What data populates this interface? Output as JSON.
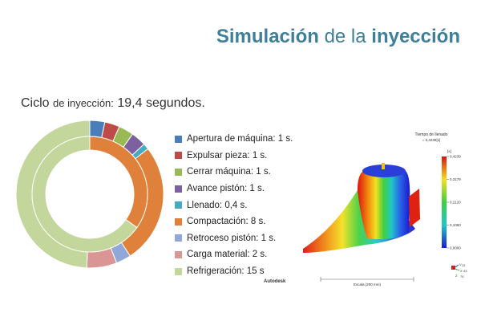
{
  "title": {
    "part1": "Simulación",
    "part2": "de la",
    "part3": "inyección"
  },
  "cycle": {
    "word": "Ciclo",
    "mid": "de inyección:",
    "value": "19,4 segundos."
  },
  "chart_data": {
    "type": "pie",
    "categories": [
      "Apertura de máquina",
      "Expulsar pieza",
      "Cerrar máquina",
      "Avance pistón",
      "Llenado",
      "Compactación",
      "Retroceso pistón",
      "Carga material",
      "Refrigeración"
    ],
    "values": [
      1,
      1,
      1,
      1,
      0.4,
      8,
      1,
      2,
      15
    ],
    "colors": [
      "#4a7ebb",
      "#be4b48",
      "#98b954",
      "#7d60a0",
      "#46aac5",
      "#e0813b",
      "#8fa8d8",
      "#d99694",
      "#c3d69b"
    ],
    "rings": [
      {
        "indices": [
          0,
          1,
          2,
          3,
          4,
          5,
          6,
          7,
          8
        ]
      },
      {
        "indices": [
          5,
          8
        ]
      }
    ],
    "legend": [
      "Apertura de máquina: 1 s.",
      "Expulsar pieza: 1 s.",
      "Cerrar máquina: 1 s.",
      "Avance pistón: 1 s.",
      "Llenado: 0,4 s.",
      "Compactación: 8 s.",
      "Retroceso pistón: 1 s.",
      "Carga material: 2 s.",
      "Refrigeración: 15 s"
    ]
  },
  "simulation": {
    "label": "Tiempo de llenado",
    "max_label": "= 0,4239[s]",
    "unit": "[s]",
    "scale_ticks": [
      "0,4239",
      "0,3179",
      "0,2120",
      "0,1060",
      "0,0000"
    ],
    "scale_label": "Escala (200 mm)",
    "brand": "Autodesk",
    "axis_values": [
      "12",
      "43",
      "74"
    ],
    "axis_labels": [
      "V",
      "X",
      "Z"
    ]
  }
}
